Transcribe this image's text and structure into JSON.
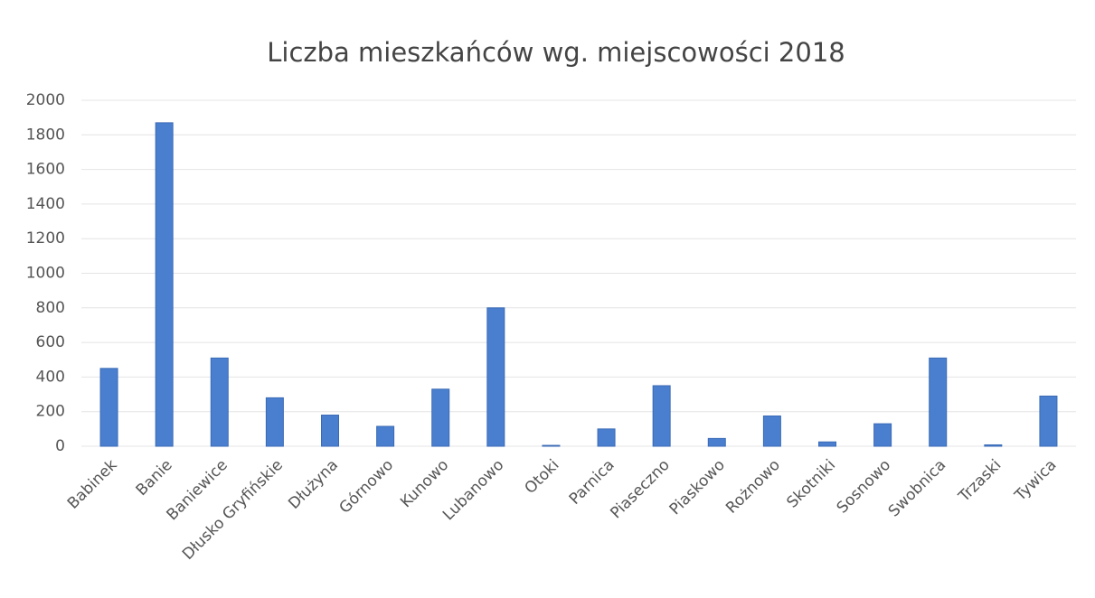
{
  "chart_data": {
    "type": "bar",
    "title": "Liczba mieszkańców wg. miejscowości 2018",
    "categories": [
      "Babinek",
      "Banie",
      "Baniewice",
      "Dłusko Gryfińskie",
      "Dłużyna",
      "Górnowo",
      "Kunowo",
      "Lubanowo",
      "Otoki",
      "Parnica",
      "Piaseczno",
      "Piaskowo",
      "Rożnowo",
      "Skotniki",
      "Sosnowo",
      "Swobnica",
      "Trzaski",
      "Tywica"
    ],
    "values": [
      450,
      1870,
      510,
      280,
      180,
      115,
      330,
      800,
      5,
      100,
      350,
      45,
      175,
      25,
      130,
      510,
      8,
      290
    ],
    "color": "#4a7fcf",
    "ylim": [
      0,
      2000
    ],
    "yticks": [
      0,
      200,
      400,
      600,
      800,
      1000,
      1200,
      1400,
      1600,
      1800,
      2000
    ],
    "grid": true
  }
}
